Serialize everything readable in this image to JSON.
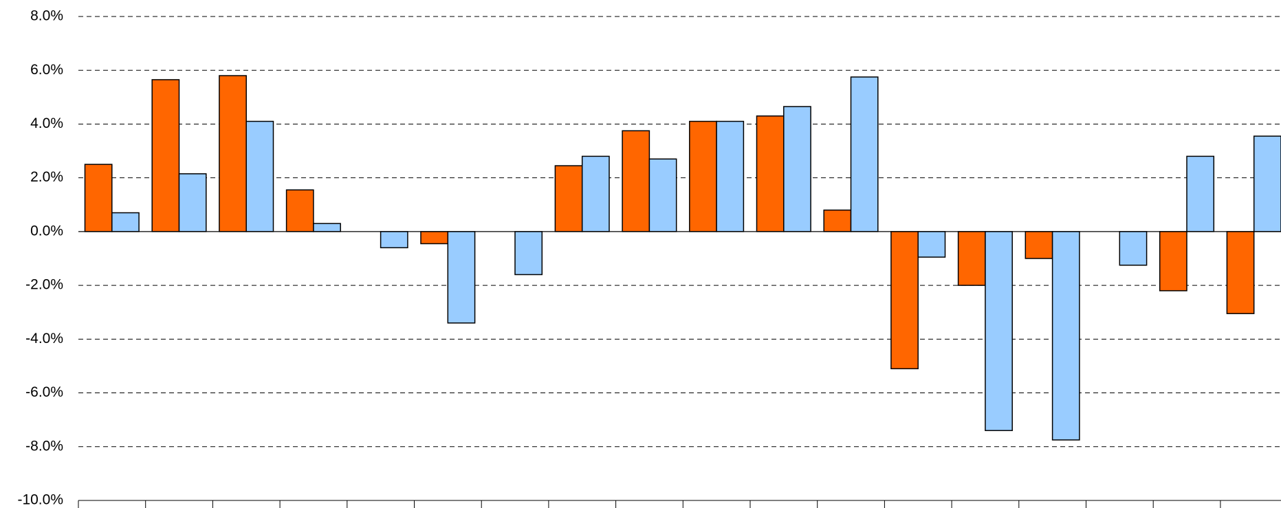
{
  "chart_data": {
    "type": "bar",
    "categories": [
      null,
      null,
      null,
      null,
      null,
      null,
      null,
      null,
      null,
      null,
      null,
      null,
      null,
      null,
      null,
      null,
      null,
      null
    ],
    "series": [
      {
        "color": "#ff6600",
        "values": [
          2.5,
          5.65,
          5.8,
          1.55,
          null,
          -0.45,
          null,
          2.45,
          3.75,
          4.1,
          4.3,
          0.8,
          -5.1,
          -2.0,
          -1.0,
          null,
          -2.2,
          -3.05
        ]
      },
      {
        "color": "#99ccff",
        "values": [
          0.7,
          2.15,
          4.1,
          0.3,
          -0.6,
          -3.4,
          -1.6,
          2.8,
          2.7,
          4.1,
          4.65,
          5.75,
          -0.95,
          -7.4,
          -7.75,
          -1.25,
          2.8,
          3.55
        ]
      }
    ],
    "ylim": [
      -10,
      8
    ],
    "yticks": [
      {
        "value": -10,
        "label": "-10.0%"
      },
      {
        "value": -8,
        "label": "-8.0%"
      },
      {
        "value": -6,
        "label": "-6.0%"
      },
      {
        "value": -4,
        "label": "-4.0%"
      },
      {
        "value": -2,
        "label": "-2.0%"
      },
      {
        "value": 0,
        "label": "0.0%"
      },
      {
        "value": 2,
        "label": "2.0%"
      },
      {
        "value": 4,
        "label": "4.0%"
      },
      {
        "value": 6,
        "label": "6.0%"
      },
      {
        "value": 8,
        "label": "8.0%"
      }
    ],
    "grid": true
  }
}
